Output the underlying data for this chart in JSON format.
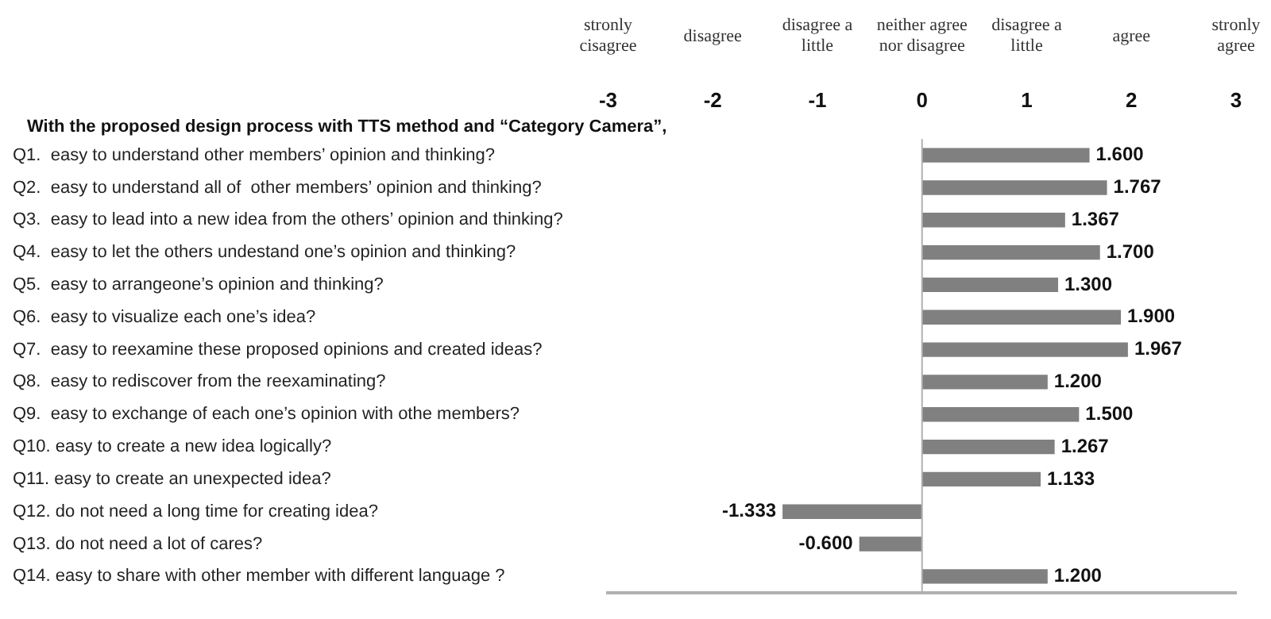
{
  "chart_data": {
    "type": "bar",
    "orientation": "horizontal",
    "title": "With the proposed design process with TTS method and “Category Camera”,",
    "categories": [
      "Q1.  easy to understand other members’ opinion and thinking?",
      "Q2.  easy to understand all of  other members’ opinion and thinking?",
      "Q3.  easy to lead into a new idea from the others’ opinion and thinking?",
      "Q4.  easy to let the others undestand one’s opinion and thinking?",
      "Q5.  easy to arrangeone’s opinion and thinking?",
      "Q6.  easy to visualize each one’s idea?",
      "Q7.  easy to reexamine these proposed opinions and created ideas?",
      "Q8.  easy to rediscover from the reexaminating?",
      "Q9.  easy to exchange of each one’s opinion with othe members?",
      "Q10. easy to create a new idea logically?",
      "Q11. easy to create an unexpected idea?",
      "Q12. do not need a long time for creating idea?",
      "Q13. do not need a lot of cares?",
      "Q14. easy to share with other member with different language ?"
    ],
    "values": [
      1.6,
      1.767,
      1.367,
      1.7,
      1.3,
      1.9,
      1.967,
      1.2,
      1.5,
      1.267,
      1.133,
      -1.333,
      -0.6,
      1.2
    ],
    "value_labels": [
      "1.600",
      "1.767",
      "1.367",
      "1.700",
      "1.300",
      "1.900",
      "1.967",
      "1.200",
      "1.500",
      "1.267",
      "1.133",
      "-1.333",
      "-0.600",
      "1.200"
    ],
    "color": "#808080",
    "xlim": [
      -3,
      3
    ],
    "xticks": [
      -3,
      -2,
      -1,
      0,
      1,
      2,
      3
    ],
    "annotations": [
      "stronly cisagree",
      "disagree",
      "disagree a little",
      "neither agree nor disagree",
      "disagree a little",
      "agree",
      "stronly agree"
    ],
    "ref_lines": [
      {
        "axis": "x",
        "value": 0,
        "color": "#b0b0b0"
      }
    ],
    "legend": false,
    "grid": false
  }
}
